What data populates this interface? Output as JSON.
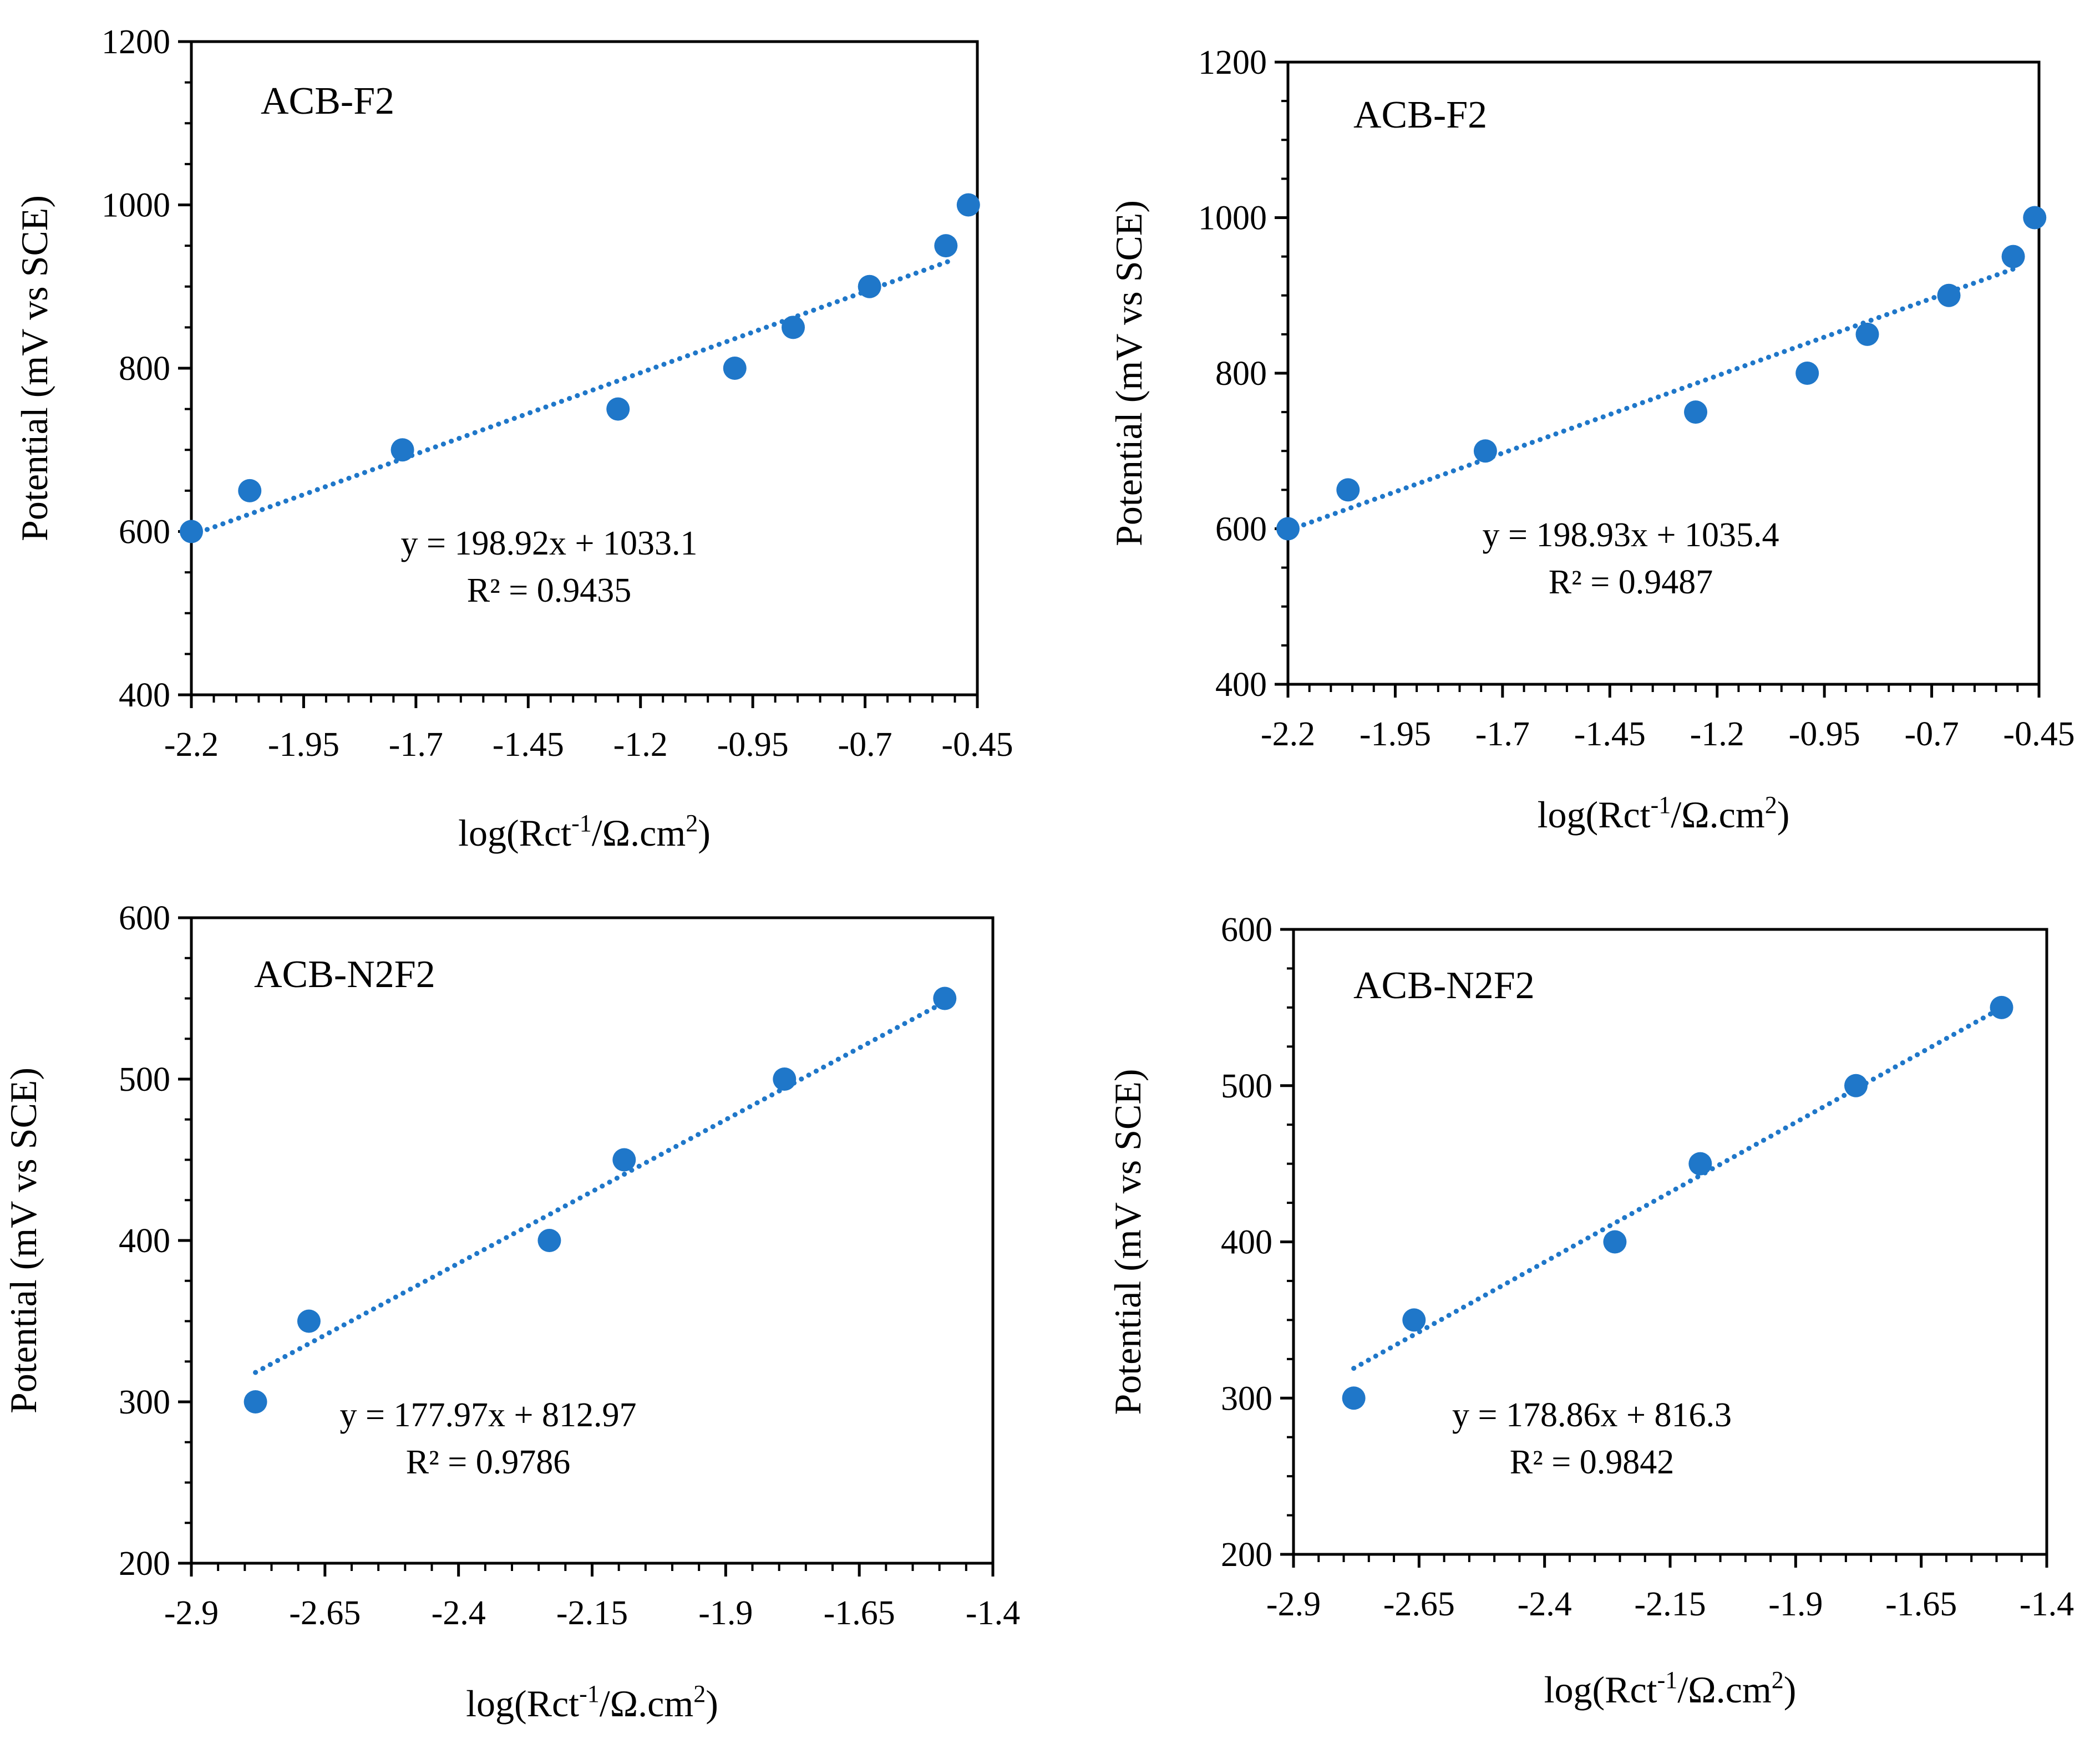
{
  "colors": {
    "marker": "#1F77C9",
    "trendline": "#1F77C9",
    "axis": "#000000",
    "background": "#ffffff"
  },
  "chart_data": [
    {
      "type": "scatter",
      "title": "ACB-F2",
      "xlabel": "log(Rct-1/Ω.cm2)",
      "xlabel_parts": {
        "pre": "log(Rct",
        "sup1": "-1",
        "mid": "/Ω.cm",
        "sup2": "2",
        "post": ")"
      },
      "ylabel": "Potential (mV vs SCE)",
      "xlim": [
        -2.2,
        -0.45
      ],
      "ylim": [
        400,
        1200
      ],
      "xticks": [
        -2.2,
        -1.95,
        -1.7,
        -1.45,
        -1.2,
        -0.95,
        -0.7,
        -0.45
      ],
      "xtick_labels": [
        "-2.2",
        "-1.95",
        "-1.7",
        "-1.45",
        "-1.2",
        "-0.95",
        "-0.7",
        "-0.45"
      ],
      "yticks": [
        400,
        600,
        800,
        1000,
        1200
      ],
      "ytick_labels": [
        "400",
        "600",
        "800",
        "1000",
        "1200"
      ],
      "series": [
        {
          "name": "data",
          "x": [
            -2.2,
            -2.07,
            -1.73,
            -1.25,
            -0.99,
            -0.86,
            -0.69,
            -0.52,
            -0.47
          ],
          "y": [
            600,
            650,
            700,
            750,
            800,
            850,
            900,
            950,
            1000
          ]
        }
      ],
      "trendline": {
        "slope": 198.92,
        "intercept": 1033.1,
        "x_range": [
          -2.2,
          -0.5
        ]
      },
      "equation": "y = 198.92x + 1033.1",
      "r2": "R² = 0.9435"
    },
    {
      "type": "scatter",
      "title": "ACB-F2",
      "xlabel": "log(Rct-1/Ω.cm2)",
      "xlabel_parts": {
        "pre": "log(Rct",
        "sup1": "-1",
        "mid": "/Ω.cm",
        "sup2": "2",
        "post": ")"
      },
      "ylabel": "Potential (mV vs SCE)",
      "xlim": [
        -2.2,
        -0.45
      ],
      "ylim": [
        400,
        1200
      ],
      "xticks": [
        -2.2,
        -1.95,
        -1.7,
        -1.45,
        -1.2,
        -0.95,
        -0.7,
        -0.45
      ],
      "xtick_labels": [
        "-2.2",
        "-1.95",
        "-1.7",
        "-1.45",
        "-1.2",
        "-0.95",
        "-0.7",
        "-0.45"
      ],
      "yticks": [
        400,
        600,
        800,
        1000,
        1200
      ],
      "ytick_labels": [
        "400",
        "600",
        "800",
        "1000",
        "1200"
      ],
      "series": [
        {
          "name": "data",
          "x": [
            -2.2,
            -2.06,
            -1.74,
            -1.25,
            -0.99,
            -0.85,
            -0.66,
            -0.51,
            -0.46
          ],
          "y": [
            600,
            650,
            700,
            750,
            800,
            850,
            900,
            950,
            1000
          ]
        }
      ],
      "trendline": {
        "slope": 198.93,
        "intercept": 1035.4,
        "x_range": [
          -2.2,
          -0.5
        ]
      },
      "equation": "y = 198.93x + 1035.4",
      "r2": "R² = 0.9487"
    },
    {
      "type": "scatter",
      "title": "ACB-N2F2",
      "xlabel": "log(Rct-1/Ω.cm2)",
      "xlabel_parts": {
        "pre": "log(Rct",
        "sup1": "-1",
        "mid": "/Ω.cm",
        "sup2": "2",
        "post": ")"
      },
      "ylabel": "Potential (mV vs SCE)",
      "xlim": [
        -2.9,
        -1.4
      ],
      "ylim": [
        200,
        600
      ],
      "xticks": [
        -2.9,
        -2.65,
        -2.4,
        -2.15,
        -1.9,
        -1.65,
        -1.4
      ],
      "xtick_labels": [
        "-2.9",
        "-2.65",
        "-2.4",
        "-2.15",
        "-1.9",
        "-1.65",
        "-1.4"
      ],
      "yticks": [
        200,
        300,
        400,
        500,
        600
      ],
      "ytick_labels": [
        "200",
        "300",
        "400",
        "500",
        "600"
      ],
      "series": [
        {
          "name": "data",
          "x": [
            -2.78,
            -2.68,
            -2.23,
            -2.09,
            -1.79,
            -1.49
          ],
          "y": [
            300,
            350,
            400,
            450,
            500,
            550
          ]
        }
      ],
      "trendline": {
        "slope": 177.97,
        "intercept": 812.97,
        "x_range": [
          -2.78,
          -1.5
        ]
      },
      "equation": "y = 177.97x + 812.97",
      "r2": "R² = 0.9786"
    },
    {
      "type": "scatter",
      "title": "ACB-N2F2",
      "xlabel": "log(Rct-1/Ω.cm2)",
      "xlabel_parts": {
        "pre": "log(Rct",
        "sup1": "-1",
        "mid": "/Ω.cm",
        "sup2": "2",
        "post": ")"
      },
      "ylabel": "Potential (mV vs SCE)",
      "xlim": [
        -2.9,
        -1.4
      ],
      "ylim": [
        200,
        600
      ],
      "xticks": [
        -2.9,
        -2.65,
        -2.4,
        -2.15,
        -1.9,
        -1.65,
        -1.4
      ],
      "xtick_labels": [
        "-2.9",
        "-2.65",
        "-2.4",
        "-2.15",
        "-1.9",
        "-1.65",
        "-1.4"
      ],
      "yticks": [
        200,
        300,
        400,
        500,
        600
      ],
      "ytick_labels": [
        "200",
        "300",
        "400",
        "500",
        "600"
      ],
      "series": [
        {
          "name": "data",
          "x": [
            -2.78,
            -2.66,
            -2.26,
            -2.09,
            -1.78,
            -1.49
          ],
          "y": [
            300,
            350,
            400,
            450,
            500,
            550
          ]
        }
      ],
      "trendline": {
        "slope": 178.86,
        "intercept": 816.3,
        "x_range": [
          -2.78,
          -1.5
        ]
      },
      "equation": "y = 178.86x + 816.3",
      "r2": "R² = 0.9842"
    }
  ]
}
